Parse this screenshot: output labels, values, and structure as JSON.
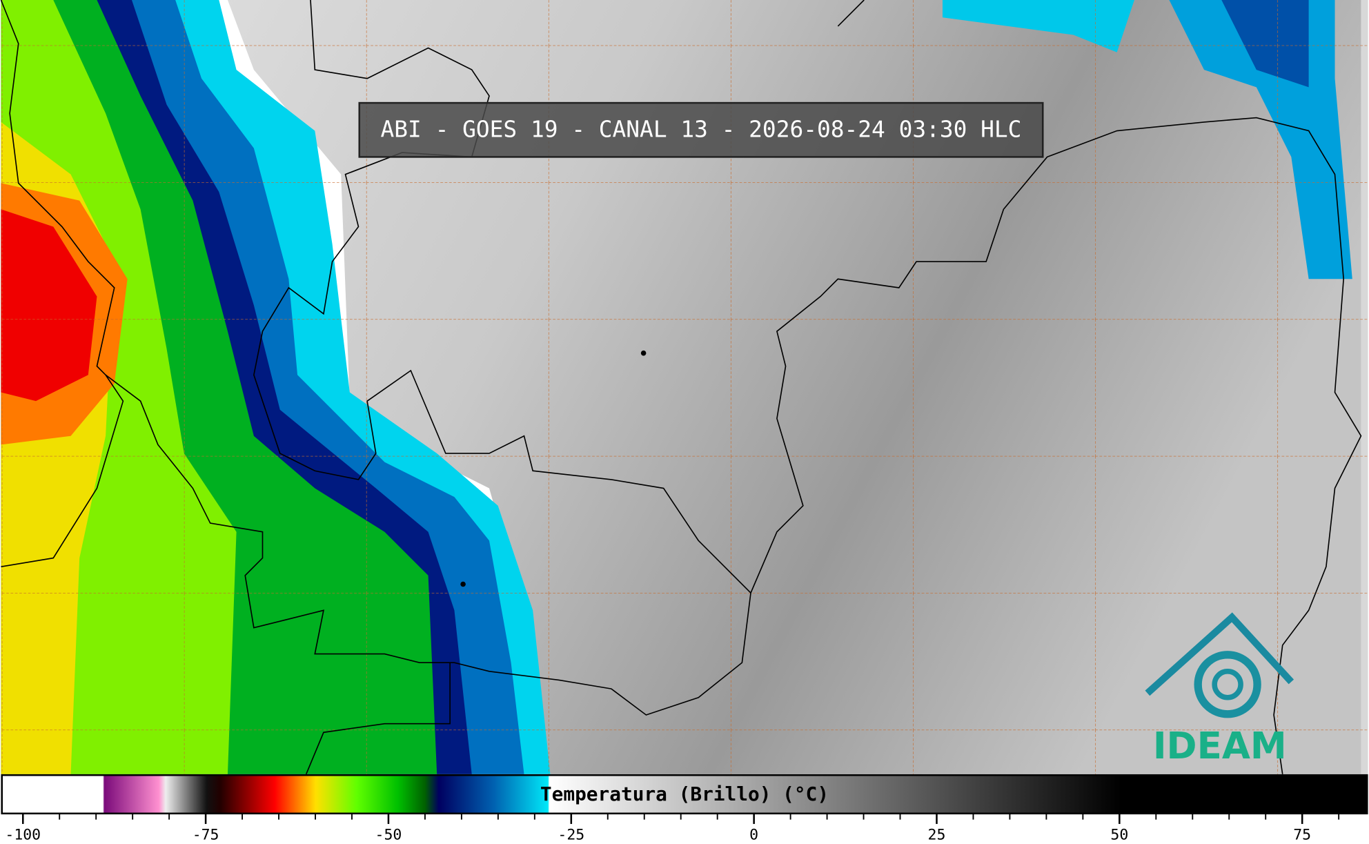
{
  "header": {
    "title": "ABI - GOES 19 - CANAL 13 - 2026-08-24 03:30 HLC"
  },
  "colorbar": {
    "label": "Temperatura (Brillo) (°C)",
    "xlim": [
      -103,
      84
    ],
    "ticks": [
      -100,
      -75,
      -50,
      -25,
      0,
      25,
      50,
      75
    ]
  },
  "logo": {
    "text": "IDEAM"
  }
}
